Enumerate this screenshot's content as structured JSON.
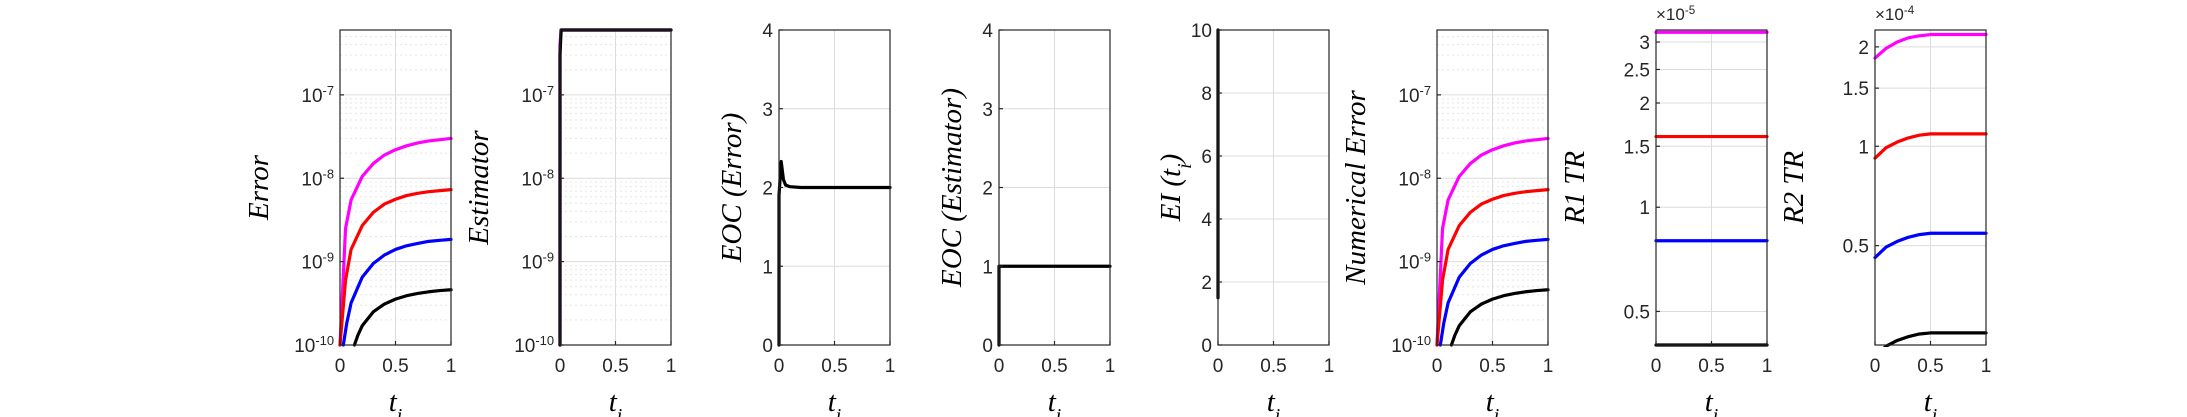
{
  "chart_data": [
    {
      "type": "line",
      "panel": "error",
      "ylabel": "Error",
      "xlabel": "t_i",
      "yscale": "log",
      "xlim": [
        0,
        1
      ],
      "ylim": [
        1e-10,
        6e-07
      ],
      "yticks": [
        "10^-10",
        "10^-9",
        "10^-8",
        "10^-7"
      ],
      "xticks": [
        "0",
        "0.5",
        "1"
      ],
      "grid": true,
      "series": [
        {
          "color": "#ff00ff",
          "x": [
            0.0,
            0.05,
            0.1,
            0.2,
            0.3,
            0.4,
            0.5,
            0.6,
            0.7,
            0.8,
            0.9,
            1.0
          ],
          "y": [
            1e-10,
            2.5e-09,
            5.5e-09,
            1.05e-08,
            1.5e-08,
            1.9e-08,
            2.2e-08,
            2.45e-08,
            2.65e-08,
            2.8e-08,
            2.9e-08,
            3e-08
          ]
        },
        {
          "color": "#ff0000",
          "x": [
            0.0,
            0.05,
            0.1,
            0.2,
            0.3,
            0.4,
            0.5,
            0.6,
            0.7,
            0.8,
            0.9,
            1.0
          ],
          "y": [
            1e-10,
            6e-10,
            1.4e-09,
            2.7e-09,
            3.9e-09,
            4.9e-09,
            5.6e-09,
            6.2e-09,
            6.6e-09,
            6.9e-09,
            7.1e-09,
            7.3e-09
          ]
        },
        {
          "color": "#0000ff",
          "x": [
            0.03,
            0.06,
            0.1,
            0.2,
            0.3,
            0.4,
            0.5,
            0.6,
            0.7,
            0.8,
            0.9,
            1.0
          ],
          "y": [
            1e-10,
            1.8e-10,
            3.2e-10,
            6.5e-10,
            9.5e-10,
            1.2e-09,
            1.4e-09,
            1.55e-09,
            1.65e-09,
            1.75e-09,
            1.8e-09,
            1.85e-09
          ]
        },
        {
          "color": "#000000",
          "x": [
            0.13,
            0.16,
            0.2,
            0.3,
            0.4,
            0.5,
            0.6,
            0.7,
            0.8,
            0.9,
            1.0
          ],
          "y": [
            1e-10,
            1.3e-10,
            1.7e-10,
            2.5e-10,
            3.1e-10,
            3.55e-10,
            3.9e-10,
            4.15e-10,
            4.35e-10,
            4.5e-10,
            4.6e-10
          ]
        }
      ]
    },
    {
      "type": "line",
      "panel": "estimator",
      "ylabel": "Estimator",
      "xlabel": "t_i",
      "yscale": "log",
      "xlim": [
        0,
        1
      ],
      "ylim": [
        1e-10,
        6e-07
      ],
      "yticks": [
        "10^-10",
        "10^-9",
        "10^-8",
        "10^-7"
      ],
      "xticks": [
        "0",
        "0.5",
        "1"
      ],
      "grid": true,
      "series": [
        {
          "color": "#ff00ff",
          "x": [
            0.0,
            0.0,
            0.01,
            1.0
          ],
          "y": [
            1e-10,
            4e-07,
            6e-07,
            6e-07
          ]
        },
        {
          "color": "#000000",
          "x": [
            0.0,
            0.0,
            0.01,
            1.0
          ],
          "y": [
            1e-10,
            3e-07,
            6e-07,
            6e-07
          ]
        }
      ]
    },
    {
      "type": "line",
      "panel": "eoc-error",
      "ylabel": "EOC (Error)",
      "xlabel": "t_i",
      "yscale": "linear",
      "xlim": [
        0,
        1
      ],
      "ylim": [
        0,
        4
      ],
      "yticks": [
        "0",
        "1",
        "2",
        "3",
        "4"
      ],
      "xticks": [
        "0",
        "0.5",
        "1"
      ],
      "grid": true,
      "series": [
        {
          "color": "#000000",
          "x": [
            0.0,
            0.0,
            0.02,
            0.04,
            0.06,
            0.1,
            0.2,
            0.5,
            1.0
          ],
          "y": [
            0.0,
            1.9,
            2.33,
            2.1,
            2.03,
            2.01,
            2.0,
            2.0,
            2.0
          ]
        }
      ]
    },
    {
      "type": "line",
      "panel": "eoc-estimator",
      "ylabel": "EOC (Estimator)",
      "xlabel": "t_i",
      "yscale": "linear",
      "xlim": [
        0,
        1
      ],
      "ylim": [
        0,
        4
      ],
      "yticks": [
        "0",
        "1",
        "2",
        "3",
        "4"
      ],
      "xticks": [
        "0",
        "0.5",
        "1"
      ],
      "grid": true,
      "series": [
        {
          "color": "#000000",
          "x": [
            0.0,
            0.0,
            0.01,
            1.0
          ],
          "y": [
            0.0,
            1.0,
            1.0,
            1.0
          ]
        }
      ]
    },
    {
      "type": "line",
      "panel": "effectivity-index",
      "ylabel": "EI (t_i)",
      "xlabel": "t_i",
      "yscale": "linear",
      "xlim": [
        0,
        1
      ],
      "ylim": [
        0,
        10
      ],
      "yticks": [
        "0",
        "2",
        "4",
        "6",
        "8",
        "10"
      ],
      "xticks": [
        "0",
        "0.5",
        "1"
      ],
      "grid": true,
      "series": [
        {
          "color": "#000000",
          "x": [
            0.0,
            0.0
          ],
          "y": [
            1.5,
            10.0
          ]
        }
      ]
    },
    {
      "type": "line",
      "panel": "numerical-error",
      "ylabel": "Numerical Error",
      "xlabel": "t_i",
      "yscale": "log",
      "xlim": [
        0,
        1
      ],
      "ylim": [
        1e-10,
        6e-07
      ],
      "yticks": [
        "10^-10",
        "10^-9",
        "10^-8",
        "10^-7"
      ],
      "xticks": [
        "0",
        "0.5",
        "1"
      ],
      "grid": true,
      "series": [
        {
          "color": "#ff00ff",
          "x": [
            0.0,
            0.05,
            0.1,
            0.2,
            0.3,
            0.4,
            0.5,
            0.6,
            0.7,
            0.8,
            0.9,
            1.0
          ],
          "y": [
            1e-10,
            2.5e-09,
            5.5e-09,
            1.05e-08,
            1.5e-08,
            1.9e-08,
            2.2e-08,
            2.45e-08,
            2.65e-08,
            2.8e-08,
            2.9e-08,
            3e-08
          ]
        },
        {
          "color": "#ff0000",
          "x": [
            0.0,
            0.05,
            0.1,
            0.2,
            0.3,
            0.4,
            0.5,
            0.6,
            0.7,
            0.8,
            0.9,
            1.0
          ],
          "y": [
            1e-10,
            6e-10,
            1.4e-09,
            2.7e-09,
            3.9e-09,
            4.9e-09,
            5.6e-09,
            6.2e-09,
            6.6e-09,
            6.9e-09,
            7.1e-09,
            7.3e-09
          ]
        },
        {
          "color": "#0000ff",
          "x": [
            0.03,
            0.06,
            0.1,
            0.2,
            0.3,
            0.4,
            0.5,
            0.6,
            0.7,
            0.8,
            0.9,
            1.0
          ],
          "y": [
            1e-10,
            1.8e-10,
            3.2e-10,
            6.5e-10,
            9.5e-10,
            1.2e-09,
            1.4e-09,
            1.55e-09,
            1.65e-09,
            1.75e-09,
            1.8e-09,
            1.85e-09
          ]
        },
        {
          "color": "#000000",
          "x": [
            0.13,
            0.16,
            0.2,
            0.3,
            0.4,
            0.5,
            0.6,
            0.7,
            0.8,
            0.9,
            1.0
          ],
          "y": [
            1e-10,
            1.3e-10,
            1.7e-10,
            2.5e-10,
            3.1e-10,
            3.55e-10,
            3.9e-10,
            4.15e-10,
            4.35e-10,
            4.5e-10,
            4.6e-10
          ]
        }
      ]
    },
    {
      "type": "line",
      "panel": "r1-tr",
      "ylabel": "R1 TR",
      "xlabel": "t_i",
      "yscale": "log",
      "xlim": [
        0,
        1
      ],
      "ylim": [
        0.4,
        3.25
      ],
      "y_multiplier": "×10^-5",
      "yticks": [
        "0.5",
        "1",
        "1.5",
        "2",
        "2.5",
        "3"
      ],
      "xticks": [
        "0",
        "0.5",
        "1"
      ],
      "grid": true,
      "series": [
        {
          "color": "#ff00ff",
          "x": [
            0.0,
            1.0
          ],
          "y": [
            3.2,
            3.2
          ]
        },
        {
          "color": "#ff0000",
          "x": [
            0.0,
            1.0
          ],
          "y": [
            1.6,
            1.6
          ]
        },
        {
          "color": "#0000ff",
          "x": [
            0.0,
            1.0
          ],
          "y": [
            0.8,
            0.8
          ]
        },
        {
          "color": "#000000",
          "x": [
            0.0,
            1.0
          ],
          "y": [
            0.4,
            0.4
          ]
        }
      ]
    },
    {
      "type": "line",
      "panel": "r2-tr",
      "ylabel": "R2 TR",
      "xlabel": "t_i",
      "yscale": "log",
      "xlim": [
        0,
        1
      ],
      "ylim": [
        0.25,
        2.25
      ],
      "y_multiplier": "×10^-4",
      "yticks": [
        "0.5",
        "1",
        "1.5",
        "2"
      ],
      "xticks": [
        "0",
        "0.5",
        "1"
      ],
      "grid": true,
      "series": [
        {
          "color": "#ff00ff",
          "x": [
            0.0,
            0.1,
            0.2,
            0.3,
            0.4,
            0.5,
            0.6,
            1.0
          ],
          "y": [
            1.85,
            1.98,
            2.07,
            2.13,
            2.16,
            2.18,
            2.18,
            2.18
          ]
        },
        {
          "color": "#ff0000",
          "x": [
            0.0,
            0.1,
            0.2,
            0.3,
            0.4,
            0.5,
            0.6,
            1.0
          ],
          "y": [
            0.92,
            0.99,
            1.03,
            1.06,
            1.08,
            1.09,
            1.09,
            1.09
          ]
        },
        {
          "color": "#0000ff",
          "x": [
            0.0,
            0.1,
            0.2,
            0.3,
            0.4,
            0.5,
            0.6,
            1.0
          ],
          "y": [
            0.46,
            0.495,
            0.515,
            0.53,
            0.54,
            0.545,
            0.545,
            0.545
          ]
        },
        {
          "color": "#000000",
          "x": [
            0.0,
            0.1,
            0.2,
            0.3,
            0.4,
            0.5,
            0.6,
            1.0
          ],
          "y": [
            0.23,
            0.248,
            0.258,
            0.265,
            0.27,
            0.272,
            0.272,
            0.272
          ]
        }
      ]
    }
  ]
}
